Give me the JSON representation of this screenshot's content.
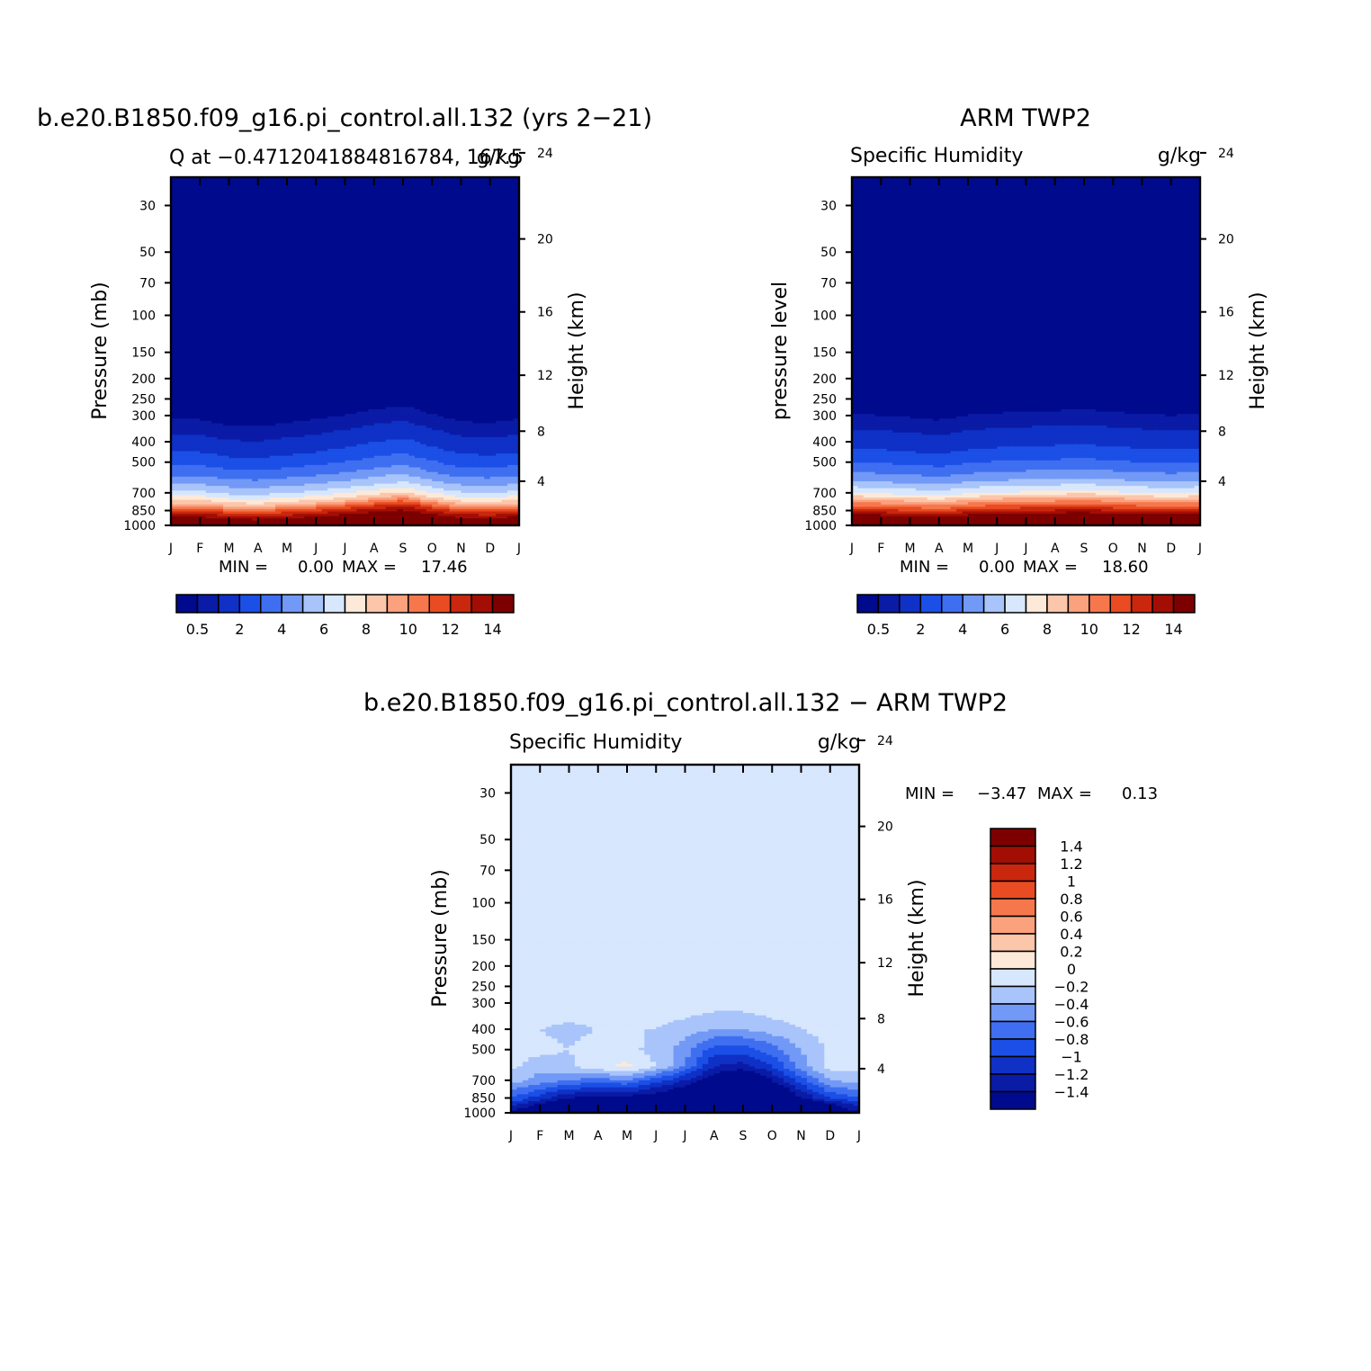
{
  "months": [
    "J",
    "F",
    "M",
    "A",
    "M",
    "J",
    "J",
    "A",
    "S",
    "O",
    "N",
    "D",
    "J"
  ],
  "pressure_ticks": [
    30,
    50,
    70,
    100,
    150,
    200,
    250,
    300,
    400,
    500,
    700,
    850,
    1000
  ],
  "height_ticks": [
    4,
    8,
    12,
    16,
    20,
    24
  ],
  "chart_data": [
    {
      "type": "heatmap",
      "title": "b.e20.B1850.f09_g16.pi_control.all.132 (yrs 2−21)",
      "left_label": "Q at −0.4712041884816784, 167.5",
      "right_label": "g/kg",
      "ylabel": "Pressure (mb)",
      "ylabel_right": "Height (km)",
      "min_label": "MIN =",
      "min_value": "0.00",
      "max_label": "MAX =",
      "max_value": "17.46",
      "ylim": [
        1000,
        22
      ],
      "colorbar": {
        "levels": [
          0.5,
          1,
          2,
          3,
          4,
          5,
          6,
          7,
          8,
          9,
          10,
          11,
          12,
          13,
          14
        ],
        "labels": [
          "0.5",
          "2",
          "4",
          "6",
          "8",
          "10",
          "12",
          "14"
        ],
        "colors": [
          "#000a8c",
          "#0a1ba6",
          "#0f31c6",
          "#1b4fe6",
          "#3f6ff0",
          "#7299f5",
          "#a8c4fa",
          "#d7e7fd",
          "#fde9d8",
          "#fcc6aa",
          "#fba17e",
          "#f7774d",
          "#e94c22",
          "#c9270e",
          "#a30e04",
          "#7d0000"
        ]
      },
      "q_profile": [
        {
          "p": 1000,
          "q": 16.8
        },
        {
          "p": 925,
          "q": 14.5
        },
        {
          "p": 850,
          "q": 12.0
        },
        {
          "p": 775,
          "q": 8.5
        },
        {
          "p": 700,
          "q": 6.3
        },
        {
          "p": 600,
          "q": 4.3
        },
        {
          "p": 500,
          "q": 2.7
        },
        {
          "p": 400,
          "q": 1.3
        },
        {
          "p": 340,
          "q": 0.7
        },
        {
          "p": 300,
          "q": 0.4
        },
        {
          "p": 250,
          "q": 0.15
        },
        {
          "p": 30,
          "q": 0
        }
      ],
      "seasonal_shift_mb": [
        0,
        0,
        -25,
        -30,
        -15,
        0,
        20,
        45,
        65,
        25,
        -10,
        -15,
        0
      ]
    },
    {
      "type": "heatmap",
      "title": "ARM TWP2",
      "left_label": "Specific Humidity",
      "right_label": "g/kg",
      "ylabel": "pressure level",
      "ylabel_right": "Height (km)",
      "min_label": "MIN =",
      "min_value": "0.00",
      "max_label": "MAX =",
      "max_value": "18.60",
      "ylim": [
        1000,
        22
      ],
      "colorbar": {
        "levels": [
          0.5,
          1,
          2,
          3,
          4,
          5,
          6,
          7,
          8,
          9,
          10,
          11,
          12,
          13,
          14
        ],
        "labels": [
          "0.5",
          "2",
          "4",
          "6",
          "8",
          "10",
          "12",
          "14"
        ],
        "colors": [
          "#000a8c",
          "#0a1ba6",
          "#0f31c6",
          "#1b4fe6",
          "#3f6ff0",
          "#7299f5",
          "#a8c4fa",
          "#d7e7fd",
          "#fde9d8",
          "#fcc6aa",
          "#fba17e",
          "#f7774d",
          "#e94c22",
          "#c9270e",
          "#a30e04",
          "#7d0000"
        ]
      },
      "q_profile": [
        {
          "p": 1000,
          "q": 18.2
        },
        {
          "p": 925,
          "q": 15.5
        },
        {
          "p": 850,
          "q": 12.5
        },
        {
          "p": 775,
          "q": 9.8
        },
        {
          "p": 700,
          "q": 7.0
        },
        {
          "p": 600,
          "q": 4.6
        },
        {
          "p": 500,
          "q": 3.0
        },
        {
          "p": 400,
          "q": 1.5
        },
        {
          "p": 330,
          "q": 0.8
        },
        {
          "p": 290,
          "q": 0.45
        },
        {
          "p": 250,
          "q": 0.2
        },
        {
          "p": 30,
          "q": 0
        }
      ],
      "seasonal_shift_mb": [
        0,
        -5,
        -15,
        -25,
        -5,
        5,
        10,
        15,
        20,
        10,
        0,
        -5,
        0
      ]
    },
    {
      "type": "heatmap",
      "title": "b.e20.B1850.f09_g16.pi_control.all.132 − ARM TWP2",
      "left_label": "Specific Humidity",
      "right_label": "g/kg",
      "ylabel": "Pressure (mb)",
      "ylabel_right": "Height (km)",
      "min_label": "MIN =",
      "min_value": "−3.47",
      "max_label": "MAX =",
      "max_value": "0.13",
      "ylim": [
        1000,
        22
      ],
      "colorbar": {
        "levels": [
          -1.4,
          -1.2,
          -1,
          -0.8,
          -0.6,
          -0.4,
          -0.2,
          0,
          0.2,
          0.4,
          0.6,
          0.8,
          1,
          1.2,
          1.4
        ],
        "labels": [
          "1.4",
          "1.2",
          "1",
          "0.8",
          "0.6",
          "0.4",
          "0.2",
          "0",
          "−0.2",
          "−0.4",
          "−0.6",
          "−0.8",
          "−1",
          "−1.2",
          "−1.4"
        ],
        "colors": [
          "#000a8c",
          "#0a1ba6",
          "#0f31c6",
          "#1b4fe6",
          "#3f6ff0",
          "#7299f5",
          "#a8c4fa",
          "#d7e7fd",
          "#fde9d8",
          "#fcc6aa",
          "#fba17e",
          "#f7774d",
          "#e94c22",
          "#c9270e",
          "#a30e04",
          "#7d0000"
        ]
      },
      "diff_field": {
        "rows_p": [
          1000,
          925,
          850,
          700,
          600,
          500,
          400,
          300,
          30
        ],
        "values": [
          [
            -1.5,
            -1.6,
            -1.7,
            -1.8,
            -1.9,
            -2.0,
            -2.2,
            -2.4,
            -2.3,
            -2.0,
            -1.7,
            -1.5,
            -1.5
          ],
          [
            -1.2,
            -1.5,
            -1.8,
            -2.0,
            -2.2,
            -2.4,
            -2.6,
            -3.0,
            -3.4,
            -2.8,
            -2.0,
            -1.5,
            -1.2
          ],
          [
            -0.8,
            -1.1,
            -1.4,
            -1.5,
            -1.5,
            -1.6,
            -1.8,
            -2.2,
            -2.6,
            -2.0,
            -1.4,
            -1.0,
            -0.8
          ],
          [
            -0.3,
            -0.5,
            -0.6,
            -0.7,
            -0.6,
            -0.9,
            -1.2,
            -1.6,
            -1.8,
            -1.4,
            -0.9,
            -0.4,
            -0.3
          ],
          [
            -0.15,
            -0.3,
            -0.25,
            -0.05,
            0.05,
            -0.2,
            -0.6,
            -1.2,
            -1.3,
            -1.0,
            -0.5,
            -0.1,
            -0.15
          ],
          [
            -0.12,
            -0.15,
            -0.2,
            -0.1,
            -0.1,
            -0.3,
            -0.5,
            -0.9,
            -0.9,
            -0.7,
            -0.4,
            -0.15,
            -0.12
          ],
          [
            -0.05,
            -0.2,
            -0.25,
            -0.2,
            -0.2,
            -0.2,
            -0.3,
            -0.4,
            -0.4,
            -0.3,
            -0.2,
            -0.1,
            -0.05
          ],
          [
            -0.02,
            -0.05,
            -0.05,
            -0.05,
            -0.05,
            -0.05,
            -0.05,
            -0.1,
            -0.1,
            -0.05,
            -0.05,
            -0.05,
            -0.02
          ],
          [
            -0.01,
            -0.01,
            -0.01,
            -0.01,
            -0.01,
            -0.01,
            -0.01,
            -0.01,
            -0.01,
            -0.01,
            -0.01,
            -0.01,
            -0.01
          ]
        ]
      }
    }
  ]
}
